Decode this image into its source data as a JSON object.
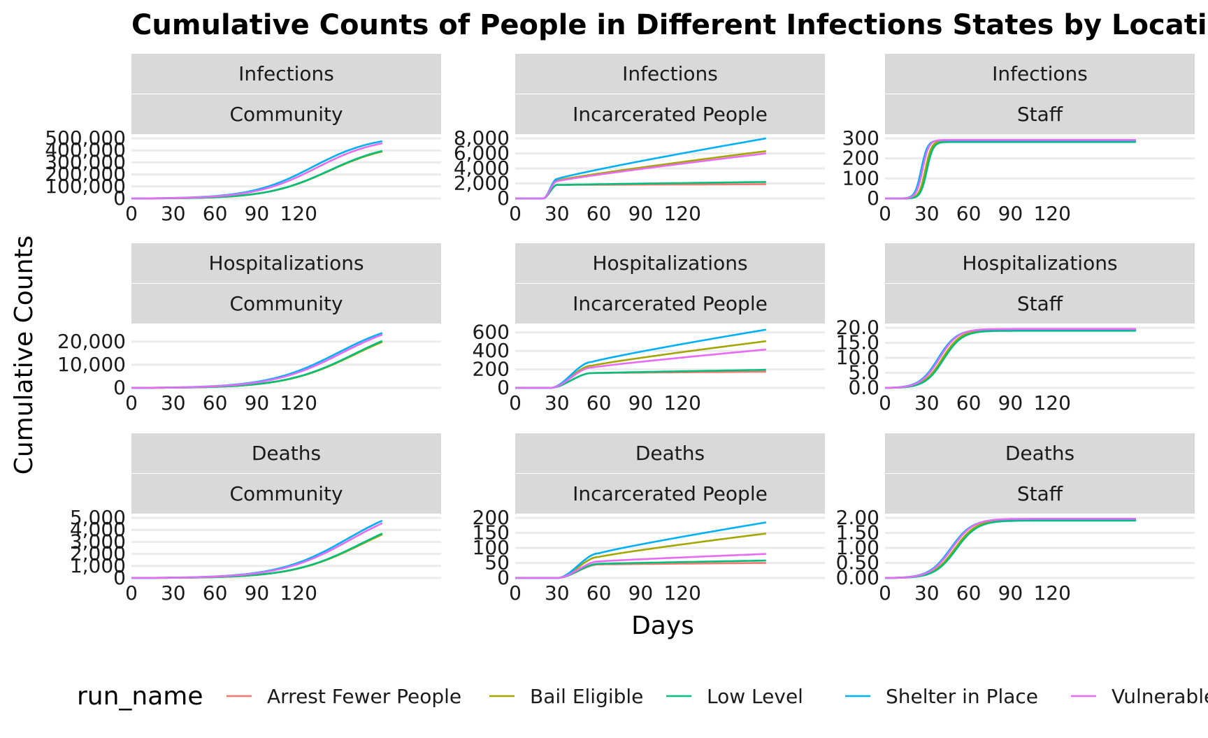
{
  "chart_data": {
    "type": "line",
    "title": "Cumulative Counts of People in Different Infections States by Location",
    "xlabel": "Days",
    "ylabel": "Cumulative Counts",
    "legend": {
      "title": "run_name",
      "placement": "bottom",
      "entries": [
        {
          "name": "Arrest Fewer People",
          "color": "#F8766D"
        },
        {
          "name": "Bail Eligible",
          "color": "#A3A500"
        },
        {
          "name": "Low Level",
          "color": "#00BF7D"
        },
        {
          "name": "Shelter in Place",
          "color": "#00B0F6"
        },
        {
          "name": "Vulnerable Older People",
          "color": "#E76BF3"
        }
      ]
    },
    "x_ticks": [
      0,
      30,
      60,
      90,
      120
    ],
    "x_tick_labels": [
      "0",
      "30",
      "60",
      "90",
      "120"
    ],
    "x_range": [
      0,
      200
    ],
    "panels": [
      {
        "row_label": "Infections",
        "col_label": "Community",
        "ylim": [
          0,
          500000
        ],
        "yticks": [
          0,
          100000,
          200000,
          300000,
          400000,
          500000
        ],
        "ytick_labels": [
          "0",
          "100,000",
          "200,000",
          "300,000",
          "400,000",
          "500,000"
        ],
        "curve": {
          "type": "logistic",
          "midpoint": 140,
          "steepness": 0.045,
          "t0": 0
        },
        "finals": {
          "Arrest Fewer People": 430000,
          "Bail Eligible": 430000,
          "Low Level": 435000,
          "Shelter in Place": 505000,
          "Vulnerable Older People": 490000
        },
        "midpoints": {
          "Arrest Fewer People": 142,
          "Bail Eligible": 142,
          "Low Level": 142,
          "Shelter in Place": 130,
          "Vulnerable Older People": 133
        }
      },
      {
        "row_label": "Infections",
        "col_label": "Incarcerated People",
        "ylim": [
          0,
          8000
        ],
        "yticks": [
          0,
          2000,
          4000,
          6000,
          8000
        ],
        "ytick_labels": [
          "0",
          "2,000",
          "4,000",
          "6,000",
          "8,000"
        ],
        "curve": {
          "type": "jump_linear",
          "onset": 20,
          "rise_end": 30
        },
        "values_at": {
          "Arrest Fewer People": {
            "jump": 1800,
            "end": 1900
          },
          "Bail Eligible": {
            "jump": 2400,
            "end": 6300
          },
          "Low Level": {
            "jump": 1800,
            "end": 2200
          },
          "Shelter in Place": {
            "jump": 2600,
            "end": 8000
          },
          "Vulnerable Older People": {
            "jump": 2300,
            "end": 6000
          }
        }
      },
      {
        "row_label": "Infections",
        "col_label": "Staff",
        "ylim": [
          0,
          300
        ],
        "yticks": [
          0,
          100,
          200,
          300
        ],
        "ytick_labels": [
          "0",
          "100",
          "200",
          "300"
        ],
        "curve": {
          "type": "logistic",
          "steepness": 0.45
        },
        "finals": {
          "Arrest Fewer People": 285,
          "Bail Eligible": 288,
          "Low Level": 282,
          "Shelter in Place": 290,
          "Vulnerable Older People": 292
        },
        "midpoints": {
          "Arrest Fewer People": 29,
          "Bail Eligible": 29,
          "Low Level": 30,
          "Shelter in Place": 26,
          "Vulnerable Older People": 27
        }
      },
      {
        "row_label": "Hospitalizations",
        "col_label": "Community",
        "ylim": [
          0,
          26000
        ],
        "yticks": [
          0,
          10000,
          20000
        ],
        "ytick_labels": [
          "0",
          "10,000",
          "20,000"
        ],
        "curve": {
          "type": "logistic",
          "steepness": 0.04
        },
        "finals": {
          "Arrest Fewer People": 24000,
          "Bail Eligible": 24000,
          "Low Level": 24500,
          "Shelter in Place": 27000,
          "Vulnerable Older People": 26500
        },
        "midpoints": {
          "Arrest Fewer People": 160,
          "Bail Eligible": 160,
          "Low Level": 160,
          "Shelter in Place": 148,
          "Vulnerable Older People": 151
        }
      },
      {
        "row_label": "Hospitalizations",
        "col_label": "Incarcerated People",
        "ylim": [
          0,
          650
        ],
        "yticks": [
          0,
          200,
          400,
          600
        ],
        "ytick_labels": [
          "0",
          "200",
          "400",
          "600"
        ],
        "curve": {
          "type": "jump_linear",
          "onset": 25,
          "rise_end": 55
        },
        "values_at": {
          "Arrest Fewer People": {
            "jump": 160,
            "end": 175
          },
          "Bail Eligible": {
            "jump": 240,
            "end": 505
          },
          "Low Level": {
            "jump": 160,
            "end": 195
          },
          "Shelter in Place": {
            "jump": 280,
            "end": 630
          },
          "Vulnerable Older People": {
            "jump": 220,
            "end": 415
          }
        }
      },
      {
        "row_label": "Hospitalizations",
        "col_label": "Staff",
        "ylim": [
          0,
          20
        ],
        "yticks": [
          0,
          5,
          10,
          15,
          20
        ],
        "ytick_labels": [
          "0.0",
          "5.0",
          "10.0",
          "15.0",
          "20.0"
        ],
        "curve": {
          "type": "logistic",
          "steepness": 0.15
        },
        "finals": {
          "Arrest Fewer People": 19.2,
          "Bail Eligible": 19.3,
          "Low Level": 19.0,
          "Shelter in Place": 19.5,
          "Vulnerable Older People": 19.6
        },
        "midpoints": {
          "Arrest Fewer People": 41,
          "Bail Eligible": 41,
          "Low Level": 42,
          "Shelter in Place": 38,
          "Vulnerable Older People": 39
        }
      },
      {
        "row_label": "Deaths",
        "col_label": "Community",
        "ylim": [
          0,
          5000
        ],
        "yticks": [
          0,
          1000,
          2000,
          3000,
          4000,
          5000
        ],
        "ytick_labels": [
          "0",
          "1,000",
          "2,000",
          "3,000",
          "4,000",
          "5,000"
        ],
        "curve": {
          "type": "logistic",
          "steepness": 0.04
        },
        "finals": {
          "Arrest Fewer People": 4500,
          "Bail Eligible": 4500,
          "Low Level": 4600,
          "Shelter in Place": 5600,
          "Vulnerable Older People": 5400
        },
        "midpoints": {
          "Arrest Fewer People": 165,
          "Bail Eligible": 165,
          "Low Level": 165,
          "Shelter in Place": 155,
          "Vulnerable Older People": 157
        }
      },
      {
        "row_label": "Deaths",
        "col_label": "Incarcerated People",
        "ylim": [
          0,
          200
        ],
        "yticks": [
          0,
          50,
          100,
          150,
          200
        ],
        "ytick_labels": [
          "0",
          "50",
          "100",
          "150",
          "200"
        ],
        "curve": {
          "type": "jump_linear",
          "onset": 30,
          "rise_end": 60
        },
        "values_at": {
          "Arrest Fewer People": {
            "jump": 45,
            "end": 50
          },
          "Bail Eligible": {
            "jump": 70,
            "end": 148
          },
          "Low Level": {
            "jump": 47,
            "end": 58
          },
          "Shelter in Place": {
            "jump": 82,
            "end": 185
          },
          "Vulnerable Older People": {
            "jump": 55,
            "end": 80
          }
        }
      },
      {
        "row_label": "Deaths",
        "col_label": "Staff",
        "ylim": [
          0,
          2
        ],
        "yticks": [
          0,
          0.5,
          1,
          1.5,
          2
        ],
        "ytick_labels": [
          "0.00",
          "0.50",
          "1.00",
          "1.50",
          "2.00"
        ],
        "curve": {
          "type": "logistic",
          "steepness": 0.13
        },
        "finals": {
          "Arrest Fewer People": 1.93,
          "Bail Eligible": 1.94,
          "Low Level": 1.91,
          "Shelter in Place": 1.96,
          "Vulnerable Older People": 1.97
        },
        "midpoints": {
          "Arrest Fewer People": 50,
          "Bail Eligible": 50,
          "Low Level": 51,
          "Shelter in Place": 47,
          "Vulnerable Older People": 48
        }
      }
    ]
  }
}
